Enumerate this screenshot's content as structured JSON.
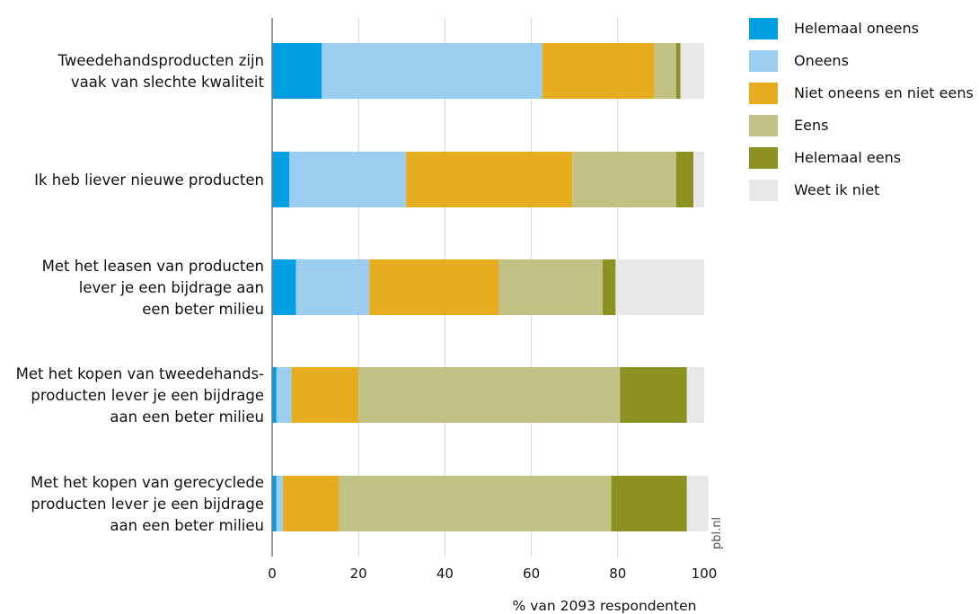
{
  "chart_data": {
    "type": "bar",
    "orientation": "horizontal",
    "stacked": true,
    "categories": [
      [
        "Tweedehandsproducten zijn",
        "vaak van slechte kwaliteit"
      ],
      [
        "Ik heb liever nieuwe producten"
      ],
      [
        "Met het leasen van producten",
        "lever je een bijdrage aan",
        "een beter milieu"
      ],
      [
        "Met het kopen van tweedehands-",
        "producten lever je een bijdrage",
        "aan een beter milieu"
      ],
      [
        "Met het kopen van gerecyclede",
        "producten lever je een bijdrage",
        "aan een beter milieu"
      ]
    ],
    "series": [
      {
        "name": "Helemaal oneens",
        "color": "#009fe3",
        "values": [
          11.5,
          4,
          5.5,
          1,
          1
        ]
      },
      {
        "name": "Oneens",
        "color": "#9ccef2",
        "values": [
          51,
          27,
          17,
          3.5,
          1.5
        ]
      },
      {
        "name": "Niet oneens en niet eens",
        "color": "#e6ad1f",
        "values": [
          26,
          38.5,
          30,
          15.5,
          13
        ]
      },
      {
        "name": "Eens",
        "color": "#c2c287",
        "values": [
          5,
          24,
          24,
          60.5,
          63
        ]
      },
      {
        "name": "Helemaal eens",
        "color": "#8c9121",
        "values": [
          1,
          4,
          3,
          15.5,
          17.5
        ]
      },
      {
        "name": "Weet ik niet",
        "color": "#e8e8e8",
        "values": [
          5.5,
          2.5,
          20.5,
          4,
          5
        ]
      }
    ],
    "xlim": [
      0,
      100
    ],
    "xticks": [
      "0",
      "20",
      "40",
      "60",
      "80",
      "100"
    ],
    "xlabel": "% van 2093 respondenten",
    "ylabel": "",
    "grid": true,
    "legend_position": "top-right",
    "source": "pbl.nl"
  }
}
